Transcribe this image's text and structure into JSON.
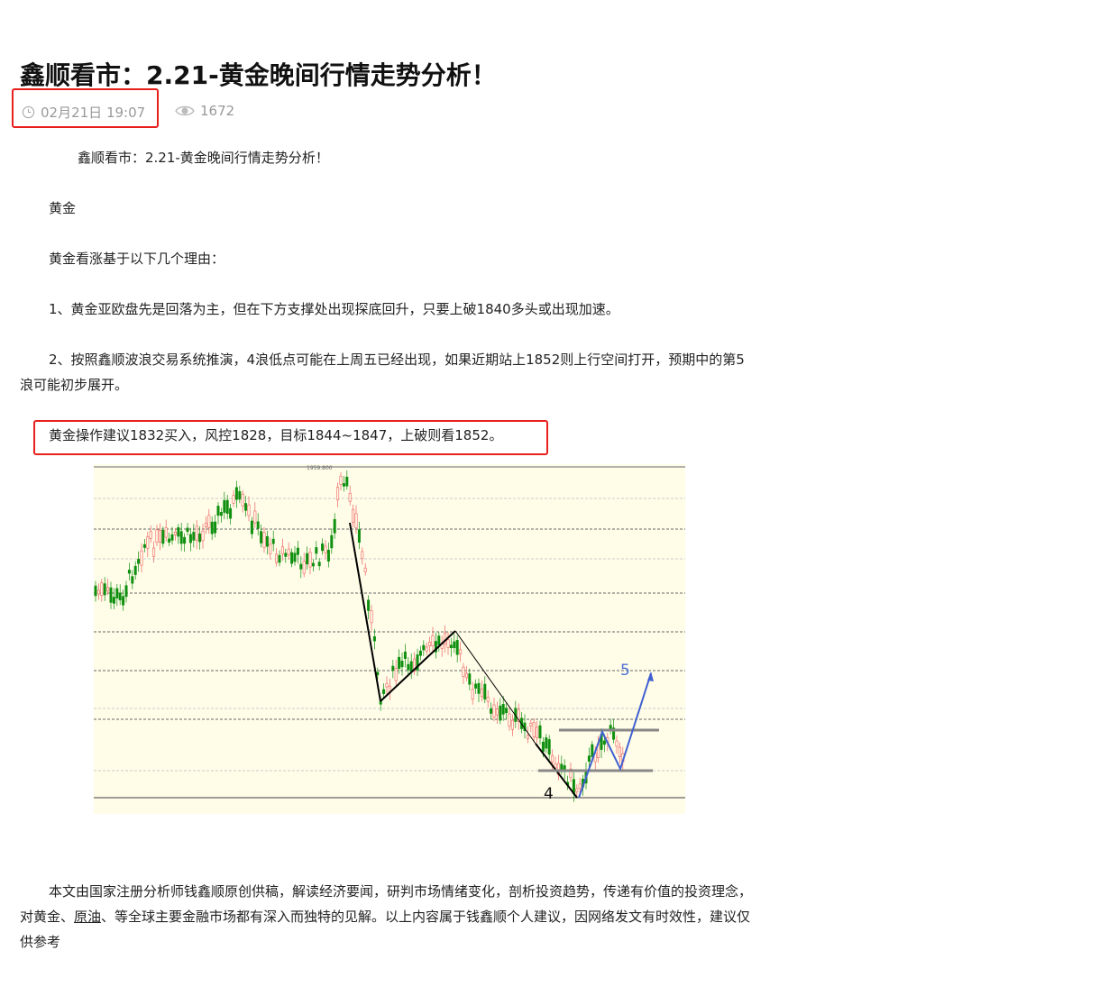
{
  "article": {
    "title": "鑫顺看市：2.21-黄金晚间行情走势分析！",
    "date": "02月21日 19:07",
    "views": "1672",
    "icons": {
      "date": "clock-icon",
      "views": "eye-icon"
    },
    "paragraphs": [
      "鑫顺看市：2.21-黄金晚间行情走势分析！",
      "黄金",
      "黄金看涨基于以下几个理由：",
      "1、黄金亚欧盘先是回落为主，但在下方支撑处出现探底回升，只要上破1840多头或出现加速。",
      "2、按照鑫顺波浪交易系统推演，4浪低点可能在上周五已经出现，如果近期站上1852则上行空间打开，预期中的第5浪可能初步展开。",
      "黄金操作建议1832买入，风控1828，目标1844~1847，上破则看1852。"
    ],
    "footer": {
      "part1": "本文由国家注册分析师钱鑫顺原创供稿，解读经济要闻，研判市场情绪变化，剖析投资趋势，传递有价值的投资理念，对黄金、",
      "link": "原油",
      "part2": "、等全球主要金融市场都有深入而独特的见解。以上内容属于钱鑫顺个人建议，因网络发文有时效性，建议仅供参考"
    },
    "highlight_color": "#e8201c"
  },
  "chart_image": {
    "price_label": "1959.800",
    "wave_labels": [
      "4",
      "5"
    ],
    "background": "#fffde8",
    "up_color": "#f06060",
    "down_color": "#109010",
    "projection_color": "#4060d0"
  }
}
